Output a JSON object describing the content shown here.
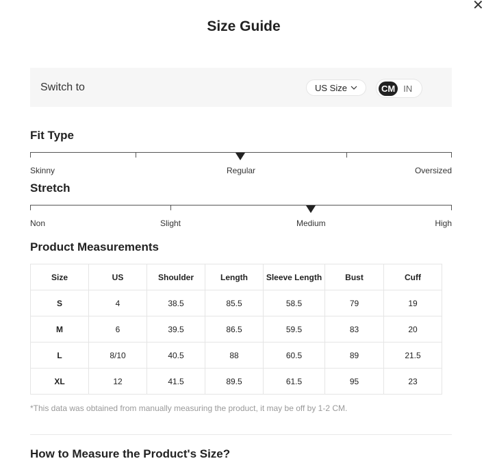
{
  "title": "Size Guide",
  "close_icon": "close-icon",
  "switch": {
    "label": "Switch to",
    "size_system": "US Size",
    "units": [
      "CM",
      "IN"
    ],
    "selected_unit": "CM"
  },
  "fit_type": {
    "heading": "Fit Type",
    "labels": [
      "Skinny",
      "Regular",
      "Oversized"
    ],
    "selected": "Regular"
  },
  "stretch": {
    "heading": "Stretch",
    "labels": [
      "Non",
      "Slight",
      "Medium",
      "High"
    ],
    "selected": "Medium"
  },
  "measurements": {
    "heading": "Product Measurements",
    "headers": [
      "Size",
      "US",
      "Shoulder",
      "Length",
      "Sleeve Length",
      "Bust",
      "Cuff"
    ],
    "rows": [
      [
        "S",
        "4",
        "38.5",
        "85.5",
        "58.5",
        "79",
        "19"
      ],
      [
        "M",
        "6",
        "39.5",
        "86.5",
        "59.5",
        "83",
        "20"
      ],
      [
        "L",
        "8/10",
        "40.5",
        "88",
        "60.5",
        "89",
        "21.5"
      ],
      [
        "XL",
        "12",
        "41.5",
        "89.5",
        "61.5",
        "95",
        "23"
      ]
    ],
    "note": "*This data was obtained from manually measuring the product, it may be off by 1-2 CM."
  },
  "how_to_heading": "How to Measure the Product's Size?"
}
